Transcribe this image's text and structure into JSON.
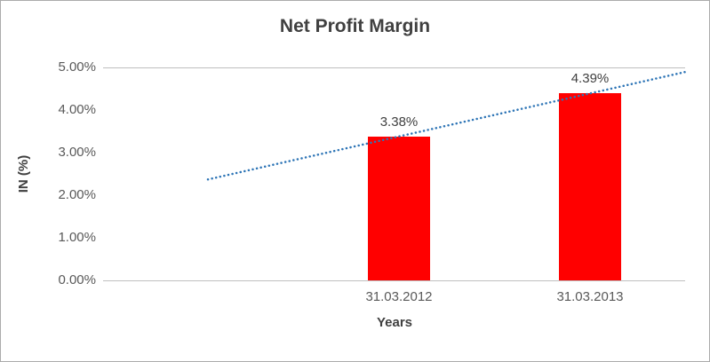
{
  "chart_data": {
    "type": "bar",
    "title": "Net Profit Margin",
    "xlabel": "Years",
    "ylabel": "IN (%)",
    "categories": [
      "31.03.2012",
      "31.03.2013"
    ],
    "values": [
      3.38,
      4.39
    ],
    "data_labels": [
      "3.38%",
      "4.39%"
    ],
    "ylim": [
      0,
      5
    ],
    "ytick_step": 1,
    "ytick_labels": [
      "0.00%",
      "1.00%",
      "2.00%",
      "3.00%",
      "4.00%",
      "5.00%"
    ],
    "bar_color": "#FF0000",
    "title_color": "#404040",
    "data_label_color": "#404040",
    "axis_text_color": "#595959",
    "axis_line_color": "#BFBFBF",
    "grid": "top-border-and-axis-only",
    "legend": false,
    "trendline": {
      "type": "linear",
      "style": "dotted",
      "color": "#2E75B6"
    }
  }
}
